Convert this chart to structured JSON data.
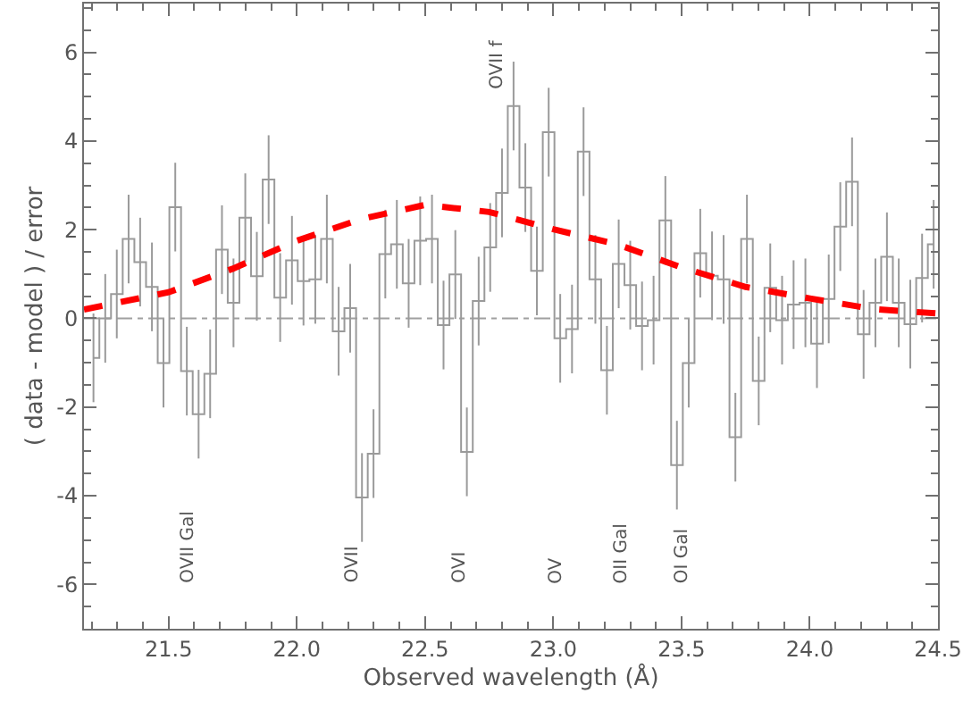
{
  "chart_data": {
    "type": "step",
    "xlabel": "Observed wavelength (Å)",
    "ylabel": "( data - model ) / error",
    "xlim": [
      21.17,
      24.5
    ],
    "ylim": [
      -7,
      7.1
    ],
    "xticks": [
      {
        "value": 21.2,
        "label": null
      },
      {
        "value": 21.3,
        "label": null
      },
      {
        "value": 21.4,
        "label": null
      },
      {
        "value": 21.5,
        "label": "21.5"
      },
      {
        "value": 21.6,
        "label": null
      },
      {
        "value": 21.7,
        "label": null
      },
      {
        "value": 21.8,
        "label": null
      },
      {
        "value": 21.9,
        "label": null
      },
      {
        "value": 22.0,
        "label": "22.0"
      },
      {
        "value": 22.1,
        "label": null
      },
      {
        "value": 22.2,
        "label": null
      },
      {
        "value": 22.3,
        "label": null
      },
      {
        "value": 22.4,
        "label": null
      },
      {
        "value": 22.5,
        "label": "22.5"
      },
      {
        "value": 22.6,
        "label": null
      },
      {
        "value": 22.7,
        "label": null
      },
      {
        "value": 22.8,
        "label": null
      },
      {
        "value": 22.9,
        "label": null
      },
      {
        "value": 23.0,
        "label": "23.0"
      },
      {
        "value": 23.1,
        "label": null
      },
      {
        "value": 23.2,
        "label": null
      },
      {
        "value": 23.3,
        "label": null
      },
      {
        "value": 23.4,
        "label": null
      },
      {
        "value": 23.5,
        "label": "23.5"
      },
      {
        "value": 23.6,
        "label": null
      },
      {
        "value": 23.7,
        "label": null
      },
      {
        "value": 23.8,
        "label": null
      },
      {
        "value": 23.9,
        "label": null
      },
      {
        "value": 24.0,
        "label": "24.0"
      },
      {
        "value": 24.1,
        "label": null
      },
      {
        "value": 24.2,
        "label": null
      },
      {
        "value": 24.3,
        "label": null
      },
      {
        "value": 24.4,
        "label": null
      },
      {
        "value": 24.5,
        "label": "24.5"
      }
    ],
    "yticks": [
      {
        "value": -6.5,
        "label": null
      },
      -6,
      {
        "value": -5.5,
        "label": null
      },
      {
        "value": -5,
        "label": null
      },
      {
        "value": -4.5,
        "label": null
      },
      -4,
      {
        "value": -3.5,
        "label": null
      },
      {
        "value": -3,
        "label": null
      },
      {
        "value": -2.5,
        "label": null
      },
      -2,
      {
        "value": -1.5,
        "label": null
      },
      {
        "value": -1,
        "label": null
      },
      {
        "value": -0.5,
        "label": null
      },
      0,
      {
        "value": 0.5,
        "label": null
      },
      {
        "value": 1,
        "label": null
      },
      {
        "value": 1.5,
        "label": null
      },
      2,
      {
        "value": 2.5,
        "label": null
      },
      {
        "value": 3,
        "label": null
      },
      {
        "value": 3.5,
        "label": null
      },
      4,
      {
        "value": 4.5,
        "label": null
      },
      {
        "value": 5,
        "label": null
      },
      {
        "value": 5.5,
        "label": null
      },
      6,
      {
        "value": 6.5,
        "label": null
      },
      {
        "value": 7,
        "label": null
      }
    ],
    "grid": false,
    "ref_lines": [
      {
        "axis": "y",
        "value": 0,
        "color": "#a0a0a0",
        "line_style": "dashdot"
      }
    ],
    "annotations": [
      "OVII Gal",
      "OVII",
      "OVI",
      "OVII f",
      "OV",
      "OII Gal",
      "OI Gal"
    ],
    "series": [
      {
        "color": "#9a9a9a",
        "x": [
          21.207,
          21.253,
          21.298,
          21.344,
          21.389,
          21.435,
          21.48,
          21.526,
          21.571,
          21.617,
          21.662,
          21.708,
          21.753,
          21.799,
          21.844,
          21.89,
          21.935,
          21.981,
          22.026,
          22.072,
          22.117,
          22.163,
          22.208,
          22.254,
          22.299,
          22.345,
          22.39,
          22.436,
          22.481,
          22.527,
          22.572,
          22.618,
          22.663,
          22.709,
          22.754,
          22.8,
          22.845,
          22.891,
          22.936,
          22.982,
          23.027,
          23.073,
          23.118,
          23.164,
          23.209,
          23.255,
          23.3,
          23.346,
          23.391,
          23.437,
          23.482,
          23.528,
          23.573,
          23.619,
          23.664,
          23.71,
          23.755,
          23.801,
          23.846,
          23.892,
          23.937,
          23.983,
          24.028,
          24.074,
          24.119,
          24.165,
          24.21,
          24.256,
          24.301,
          24.347,
          24.392,
          24.438,
          24.483
        ],
        "values": [
          -0.89,
          0,
          0.55,
          1.79,
          1.27,
          0.71,
          -1.01,
          2.51,
          -1.19,
          -2.16,
          -1.25,
          1.55,
          0.35,
          2.27,
          0.95,
          3.13,
          0.47,
          1.31,
          0.84,
          0.88,
          1.79,
          -0.29,
          0.23,
          -4.04,
          -3.05,
          1.45,
          1.67,
          0.79,
          1.75,
          1.79,
          -0.15,
          0.99,
          -3.01,
          0.39,
          1.6,
          2.83,
          4.79,
          2.95,
          1.07,
          4.2,
          -0.45,
          -0.24,
          3.76,
          0.88,
          -1.17,
          1.23,
          0.75,
          -0.17,
          -0.04,
          2.21,
          -3.31,
          -1.01,
          1.47,
          0.96,
          0.88,
          -2.68,
          1.79,
          -1.41,
          0.69,
          -0.04,
          0.31,
          0.35,
          -0.57,
          0.44,
          2.07,
          3.08,
          -0.36,
          0.35,
          1.39,
          0.35,
          -0.13,
          0.91,
          1.67
        ],
        "errors": [
          1,
          1,
          1,
          1,
          1,
          1,
          1,
          1,
          1,
          1,
          1,
          1,
          1,
          1,
          1,
          1,
          1,
          1,
          1,
          1,
          1,
          1,
          1,
          1,
          1,
          1,
          1,
          1,
          1,
          1,
          1,
          1,
          1,
          1,
          1,
          1,
          1,
          1,
          1,
          1,
          1,
          1,
          1,
          1,
          1,
          1,
          1,
          1,
          1,
          1,
          1,
          1,
          1,
          1,
          1,
          1,
          1,
          1,
          1,
          1,
          1,
          1,
          1,
          1,
          1,
          1,
          1,
          1,
          1,
          1,
          1,
          1,
          1
        ]
      },
      {
        "type": "line",
        "color": "#ff0000",
        "line_style": "dashed",
        "marker": "none",
        "x": [
          21.17,
          21.5,
          21.75,
          22.0,
          22.25,
          22.5,
          22.75,
          23.0,
          23.25,
          23.5,
          23.75,
          24.0,
          24.25,
          24.5
        ],
        "values": [
          0.2,
          0.59,
          1.12,
          1.75,
          2.24,
          2.56,
          2.4,
          2.01,
          1.67,
          1.15,
          0.71,
          0.45,
          0.21,
          0.11
        ]
      }
    ]
  }
}
